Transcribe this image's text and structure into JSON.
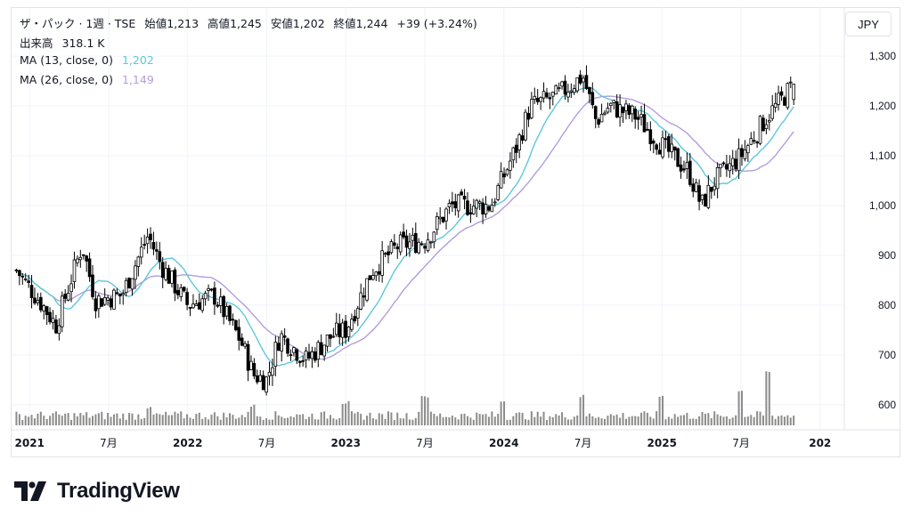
{
  "header": {
    "symbol": "ザ・パック · 1週 · TSE",
    "open_label": "始値",
    "open": "1,213",
    "high_label": "高値",
    "high": "1,245",
    "low_label": "安値",
    "low": "1,202",
    "close_label": "終値",
    "close": "1,244",
    "change": "+39 (+3.24%)",
    "volume_label": "出来高",
    "volume": "318.1 K",
    "ma13_label": "MA (13, close, 0)",
    "ma13_value": "1,202",
    "ma26_label": "MA (26, close, 0)",
    "ma26_value": "1,149"
  },
  "currency": "JPY",
  "brand": {
    "name": "TradingView"
  },
  "colors": {
    "up": "#ffffff",
    "down": "#000000",
    "ma13": "#5ec8d8",
    "ma26": "#b39ddb",
    "volume": "#8c8c8c",
    "grid": "#f0f3fa"
  },
  "chart_data": {
    "type": "candlestick",
    "y_ticks": [
      "1,300",
      "1,200",
      "1,100",
      "1,000",
      "900",
      "800",
      "700",
      "600"
    ],
    "y_tick_values": [
      1300,
      1200,
      1100,
      1000,
      900,
      800,
      700,
      600
    ],
    "ylim": [
      555,
      1345
    ],
    "x_ticks": [
      "2021",
      "7月",
      "2022",
      "7月",
      "2023",
      "7月",
      "2024",
      "7月",
      "2025",
      "7月",
      "202"
    ],
    "x_tick_dates": [
      "2021-01",
      "2021-07",
      "2022-01",
      "2022-07",
      "2023-01",
      "2023-07",
      "2024-01",
      "2024-07",
      "2025-01",
      "2025-07",
      "2026-01"
    ],
    "close_keypoints": [
      [
        "2020-12",
        870
      ],
      [
        "2021-02",
        800
      ],
      [
        "2021-03",
        760
      ],
      [
        "2021-05",
        920
      ],
      [
        "2021-06",
        810
      ],
      [
        "2021-08",
        820
      ],
      [
        "2021-10",
        940
      ],
      [
        "2021-11",
        880
      ],
      [
        "2022-01",
        800
      ],
      [
        "2022-03",
        820
      ],
      [
        "2022-05",
        730
      ],
      [
        "2022-06",
        660
      ],
      [
        "2022-07",
        650
      ],
      [
        "2022-08",
        740
      ],
      [
        "2022-10",
        690
      ],
      [
        "2022-12",
        740
      ],
      [
        "2023-01",
        750
      ],
      [
        "2023-03",
        870
      ],
      [
        "2023-05",
        920
      ],
      [
        "2023-07",
        930
      ],
      [
        "2023-09",
        1000
      ],
      [
        "2023-12",
        1000
      ],
      [
        "2024-02",
        1120
      ],
      [
        "2024-03",
        1200
      ],
      [
        "2024-05",
        1220
      ],
      [
        "2024-07",
        1260
      ],
      [
        "2024-08",
        1170
      ],
      [
        "2024-09",
        1200
      ],
      [
        "2024-11",
        1180
      ],
      [
        "2025-01",
        1120
      ],
      [
        "2025-03",
        1070
      ],
      [
        "2025-04",
        1000
      ],
      [
        "2025-05",
        1050
      ],
      [
        "2025-07",
        1100
      ],
      [
        "2025-09",
        1180
      ],
      [
        "2025-10",
        1210
      ],
      [
        "2025-11",
        1244
      ]
    ],
    "ma13_last": 1202,
    "ma26_last": 1149,
    "volume_spikes": [
      [
        "2021-10",
        1.0
      ],
      [
        "2022-06",
        1.1
      ],
      [
        "2023-01",
        1.3
      ],
      [
        "2023-07",
        1.7
      ],
      [
        "2024-01",
        1.4
      ],
      [
        "2024-07",
        1.7
      ],
      [
        "2025-01",
        1.7
      ],
      [
        "2025-07",
        2.1
      ],
      [
        "2025-09",
        3.2
      ]
    ]
  }
}
